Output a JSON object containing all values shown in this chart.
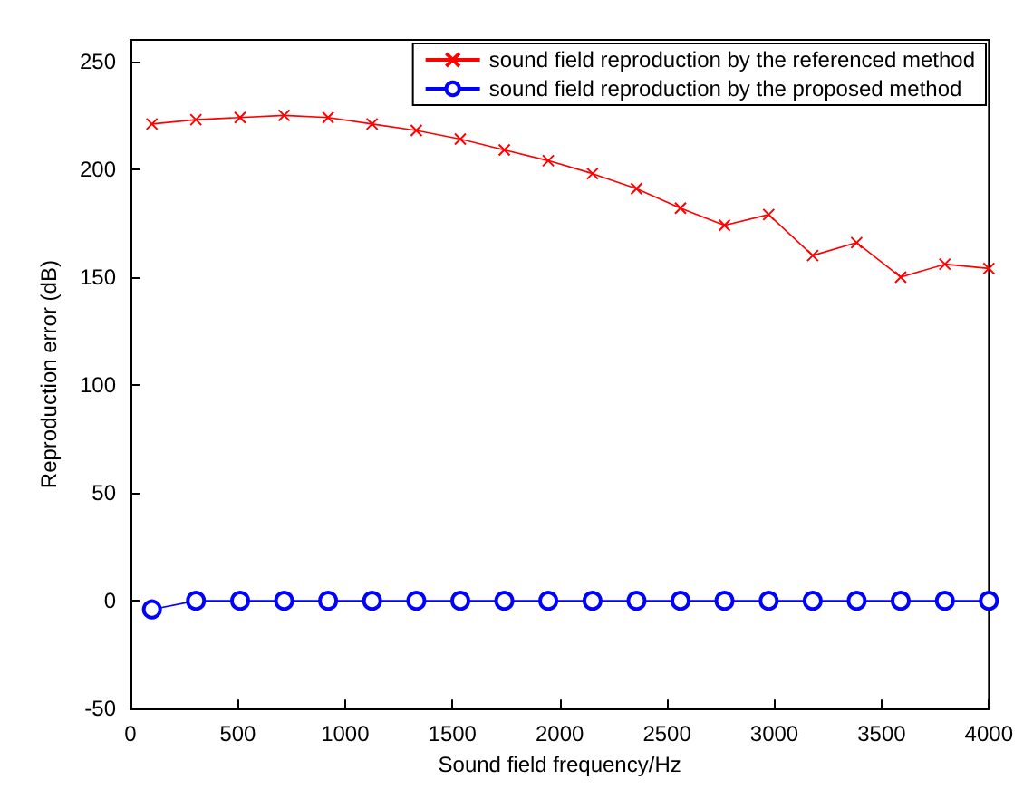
{
  "chart_data": {
    "type": "line",
    "xlabel": "Sound field frequency/Hz",
    "ylabel": "Reproduction error (dB)",
    "x": [
      100,
      305,
      511,
      716,
      921,
      1126,
      1332,
      1537,
      1742,
      1947,
      2153,
      2358,
      2563,
      2768,
      2974,
      3179,
      3384,
      3589,
      3795,
      4000
    ],
    "series": [
      {
        "name": "sound field reproduction by the referenced method",
        "color": "#ff0000",
        "marker": "cross",
        "values": [
          221,
          223,
          224,
          225,
          224,
          221,
          218,
          214,
          209,
          204,
          198,
          191,
          182,
          174,
          179,
          160,
          166,
          150,
          156,
          154
        ]
      },
      {
        "name": "sound field reproduction by the proposed method",
        "color": "#0000ff",
        "marker": "circle",
        "values": [
          -4,
          0,
          0,
          0,
          0,
          0,
          0,
          0,
          0,
          0,
          0,
          0,
          0,
          0,
          0,
          0,
          0,
          0,
          0,
          0
        ]
      }
    ],
    "xlim": [
      0,
      4000
    ],
    "xticks": [
      0,
      500,
      1000,
      1500,
      2000,
      2500,
      3000,
      3500,
      4000
    ],
    "ylim": [
      -50,
      260
    ],
    "yticks": [
      -50,
      0,
      50,
      100,
      150,
      200,
      250
    ],
    "grid": false,
    "legend": "top right"
  }
}
